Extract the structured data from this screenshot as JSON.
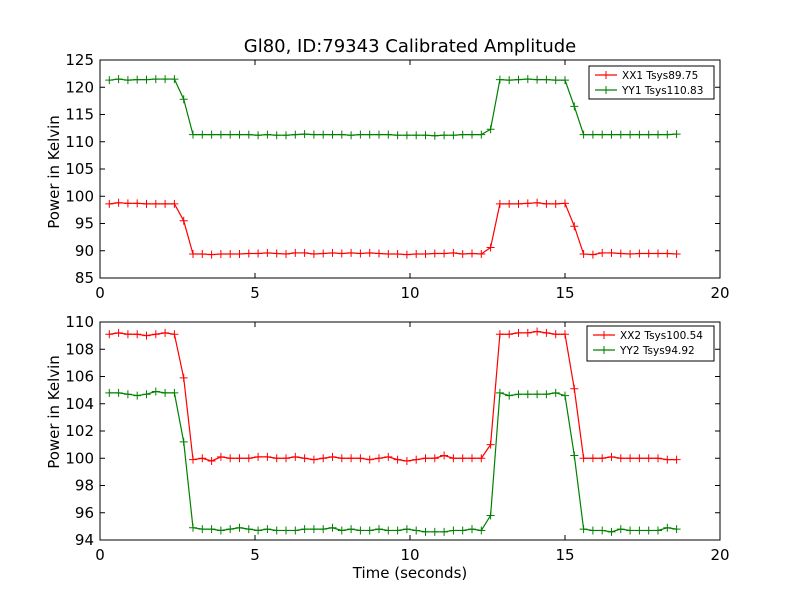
{
  "figure": {
    "title": "Gl80, ID:79343 Calibrated Amplitude"
  },
  "chart_data": [
    {
      "type": "line",
      "title": "Gl80, ID:79343 Calibrated Amplitude",
      "xlabel": "",
      "ylabel": "Power in Kelvin",
      "xlim": [
        0,
        20
      ],
      "ylim": [
        85,
        125
      ],
      "xticks": [
        0,
        5,
        10,
        15,
        20
      ],
      "yticks": [
        85,
        90,
        95,
        100,
        105,
        110,
        115,
        120,
        125
      ],
      "grid": false,
      "legend_position": "top-right",
      "x": [
        0.3,
        0.6,
        0.9,
        1.2,
        1.5,
        1.8,
        2.1,
        2.4,
        2.7,
        3.0,
        3.3,
        3.6,
        3.9,
        4.2,
        4.5,
        4.8,
        5.1,
        5.4,
        5.7,
        6.0,
        6.3,
        6.6,
        6.9,
        7.2,
        7.5,
        7.8,
        8.1,
        8.4,
        8.7,
        9.0,
        9.3,
        9.6,
        9.9,
        10.2,
        10.5,
        10.8,
        11.1,
        11.4,
        11.7,
        12.0,
        12.3,
        12.6,
        12.9,
        13.2,
        13.5,
        13.8,
        14.1,
        14.4,
        14.7,
        15.0,
        15.3,
        15.6,
        15.9,
        16.2,
        16.5,
        16.8,
        17.1,
        17.4,
        17.7,
        18.0,
        18.3,
        18.6
      ],
      "series": [
        {
          "name": "XX1 Tsys89.75",
          "color": "#ff0000",
          "values": [
            98.6,
            98.8,
            98.7,
            98.7,
            98.6,
            98.6,
            98.6,
            98.6,
            95.5,
            89.4,
            89.4,
            89.3,
            89.4,
            89.4,
            89.4,
            89.5,
            89.5,
            89.6,
            89.5,
            89.4,
            89.6,
            89.6,
            89.4,
            89.5,
            89.6,
            89.5,
            89.6,
            89.5,
            89.6,
            89.5,
            89.4,
            89.4,
            89.3,
            89.4,
            89.4,
            89.5,
            89.5,
            89.6,
            89.4,
            89.5,
            89.4,
            90.6,
            98.6,
            98.6,
            98.6,
            98.7,
            98.8,
            98.6,
            98.6,
            98.7,
            94.5,
            89.4,
            89.3,
            89.6,
            89.6,
            89.5,
            89.4,
            89.5,
            89.5,
            89.5,
            89.5,
            89.4
          ]
        },
        {
          "name": "YY1 Tsys110.83",
          "color": "#008000",
          "values": [
            121.3,
            121.5,
            121.3,
            121.4,
            121.4,
            121.5,
            121.5,
            121.5,
            117.8,
            111.3,
            111.3,
            111.3,
            111.3,
            111.3,
            111.3,
            111.3,
            111.2,
            111.3,
            111.2,
            111.2,
            111.3,
            111.4,
            111.3,
            111.3,
            111.3,
            111.3,
            111.2,
            111.3,
            111.3,
            111.3,
            111.3,
            111.2,
            111.2,
            111.2,
            111.2,
            111.1,
            111.2,
            111.2,
            111.3,
            111.3,
            111.3,
            112.3,
            121.4,
            121.3,
            121.4,
            121.5,
            121.4,
            121.4,
            121.3,
            121.3,
            116.5,
            111.3,
            111.3,
            111.3,
            111.3,
            111.3,
            111.3,
            111.3,
            111.3,
            111.3,
            111.3,
            111.4
          ]
        }
      ]
    },
    {
      "type": "line",
      "title": "",
      "xlabel": "Time (seconds)",
      "ylabel": "Power in Kelvin",
      "xlim": [
        0,
        20
      ],
      "ylim": [
        94,
        110
      ],
      "xticks": [
        0,
        5,
        10,
        15,
        20
      ],
      "yticks": [
        94,
        96,
        98,
        100,
        102,
        104,
        106,
        108,
        110
      ],
      "grid": false,
      "legend_position": "top-right",
      "x": [
        0.3,
        0.6,
        0.9,
        1.2,
        1.5,
        1.8,
        2.1,
        2.4,
        2.7,
        3.0,
        3.3,
        3.6,
        3.9,
        4.2,
        4.5,
        4.8,
        5.1,
        5.4,
        5.7,
        6.0,
        6.3,
        6.6,
        6.9,
        7.2,
        7.5,
        7.8,
        8.1,
        8.4,
        8.7,
        9.0,
        9.3,
        9.6,
        9.9,
        10.2,
        10.5,
        10.8,
        11.1,
        11.4,
        11.7,
        12.0,
        12.3,
        12.6,
        12.9,
        13.2,
        13.5,
        13.8,
        14.1,
        14.4,
        14.7,
        15.0,
        15.3,
        15.6,
        15.9,
        16.2,
        16.5,
        16.8,
        17.1,
        17.4,
        17.7,
        18.0,
        18.3,
        18.6
      ],
      "series": [
        {
          "name": "XX2 Tsys100.54",
          "color": "#ff0000",
          "values": [
            109.1,
            109.2,
            109.1,
            109.1,
            109.0,
            109.1,
            109.2,
            109.1,
            105.9,
            99.9,
            100.0,
            99.8,
            100.1,
            100.0,
            100.0,
            100.0,
            100.1,
            100.1,
            100.0,
            100.0,
            100.1,
            100.0,
            99.9,
            100.0,
            100.1,
            100.0,
            100.0,
            100.0,
            99.9,
            100.0,
            100.1,
            99.9,
            99.8,
            99.9,
            100.0,
            100.0,
            100.2,
            100.0,
            100.0,
            100.0,
            100.0,
            101.0,
            109.1,
            109.1,
            109.2,
            109.2,
            109.3,
            109.2,
            109.1,
            109.1,
            105.1,
            100.0,
            100.0,
            100.0,
            100.1,
            100.0,
            100.0,
            100.0,
            100.0,
            100.0,
            99.9,
            99.9
          ]
        },
        {
          "name": "YY2 Tsys94.92",
          "color": "#008000",
          "values": [
            104.8,
            104.8,
            104.7,
            104.6,
            104.7,
            104.9,
            104.8,
            104.8,
            101.2,
            94.9,
            94.8,
            94.8,
            94.7,
            94.8,
            94.9,
            94.8,
            94.7,
            94.8,
            94.7,
            94.7,
            94.7,
            94.8,
            94.8,
            94.8,
            94.9,
            94.7,
            94.8,
            94.7,
            94.7,
            94.8,
            94.7,
            94.7,
            94.8,
            94.7,
            94.6,
            94.6,
            94.6,
            94.7,
            94.7,
            94.8,
            94.7,
            95.8,
            104.8,
            104.6,
            104.7,
            104.7,
            104.7,
            104.7,
            104.8,
            104.6,
            100.2,
            94.8,
            94.7,
            94.7,
            94.6,
            94.8,
            94.7,
            94.7,
            94.7,
            94.7,
            94.9,
            94.8
          ]
        }
      ]
    }
  ]
}
